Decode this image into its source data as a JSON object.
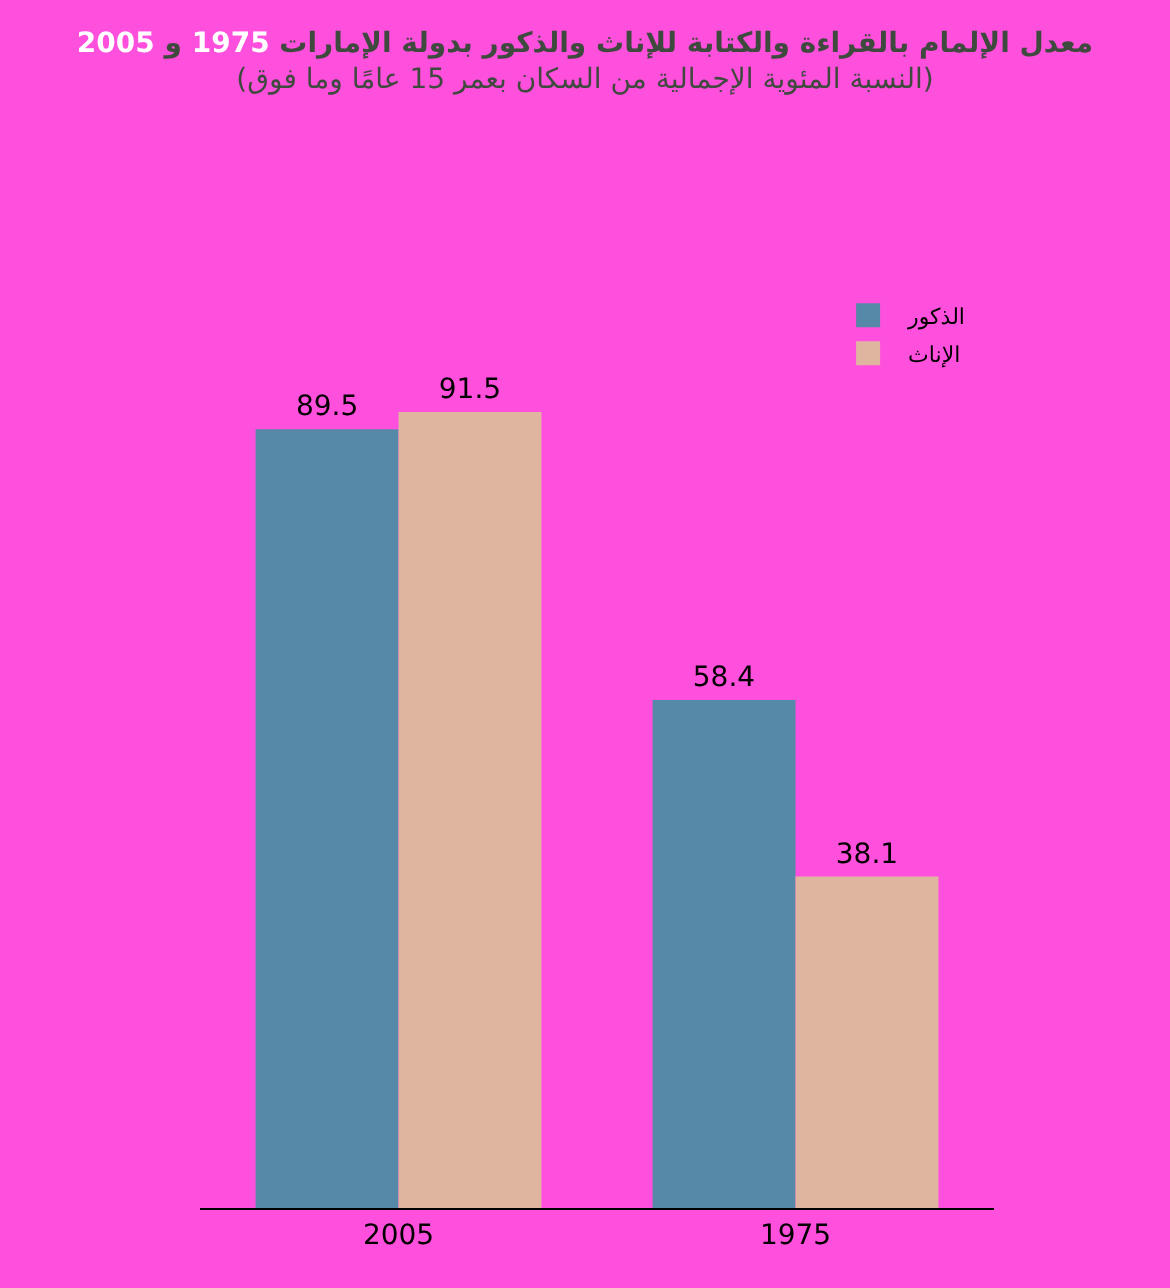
{
  "chart_data": {
    "type": "bar",
    "title": "معدل الإلمام بالقراءة والكتابة للإناث والذكور بدولة الإمارات 1975 و 2005",
    "subtitle": "(النسبة المئوية الإجمالية من السكان بعمر 15 عامًا وما فوق)",
    "categories": [
      "2005",
      "1975"
    ],
    "series": [
      {
        "name": "الذكور",
        "color": "#5589a7",
        "values": [
          89.5,
          58.4
        ]
      },
      {
        "name": "الإناث",
        "color": "#e0b5a0",
        "values": [
          91.5,
          38.1
        ]
      }
    ],
    "data_labels": true,
    "grid": false,
    "legend": "top right"
  }
}
